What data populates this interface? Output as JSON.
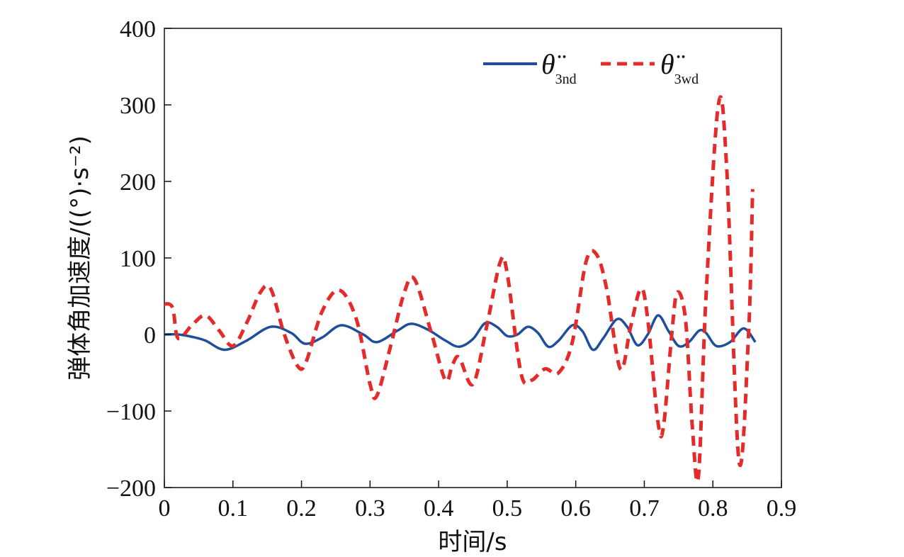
{
  "chart_data": {
    "type": "line",
    "xlabel": "时间/s",
    "ylabel": "弹体角加速度/((°)·s⁻²)",
    "xlim": [
      0,
      0.9
    ],
    "ylim": [
      -200,
      400
    ],
    "xticks": [
      0,
      0.1,
      0.2,
      0.3,
      0.4,
      0.5,
      0.6,
      0.7,
      0.8,
      0.9
    ],
    "xtick_labels": [
      "0",
      "0.1",
      "0.2",
      "0.3",
      "0.4",
      "0.5",
      "0.6",
      "0.7",
      "0.8",
      "0.9"
    ],
    "yticks": [
      -200,
      -100,
      0,
      100,
      200,
      300,
      400
    ],
    "ytick_labels": [
      "−200",
      "−100",
      "0",
      "100",
      "200",
      "300",
      "400"
    ],
    "grid": false,
    "legend": {
      "placement": "top-right",
      "entries": [
        {
          "symbol": "θ̈",
          "subscript": "3nd"
        },
        {
          "symbol": "θ̈",
          "subscript": "3wd"
        }
      ]
    },
    "series": [
      {
        "color": "#1f4e9c",
        "style": "solid",
        "x": [
          0,
          0.02,
          0.04,
          0.06,
          0.088,
          0.12,
          0.155,
          0.185,
          0.205,
          0.23,
          0.258,
          0.29,
          0.31,
          0.34,
          0.36,
          0.385,
          0.41,
          0.43,
          0.45,
          0.468,
          0.485,
          0.5,
          0.515,
          0.53,
          0.545,
          0.56,
          0.575,
          0.595,
          0.61,
          0.625,
          0.64,
          0.66,
          0.675,
          0.69,
          0.705,
          0.72,
          0.735,
          0.75,
          0.765,
          0.78,
          0.79,
          0.805,
          0.825,
          0.845,
          0.862
        ],
        "y": [
          0,
          0,
          -3,
          -8,
          -20,
          -8,
          10,
          2,
          -12,
          -4,
          12,
          0,
          -10,
          5,
          14,
          6,
          -8,
          -16,
          -6,
          15,
          10,
          -2,
          0,
          10,
          2,
          -16,
          -8,
          12,
          4,
          -20,
          -5,
          20,
          10,
          -14,
          0,
          25,
          5,
          -15,
          -10,
          5,
          2,
          -15,
          -10,
          8,
          -10
        ]
      },
      {
        "color": "#e42b2b",
        "style": "dashed",
        "x": [
          0,
          0.012,
          0.02,
          0.04,
          0.06,
          0.08,
          0.1,
          0.12,
          0.14,
          0.155,
          0.175,
          0.195,
          0.207,
          0.23,
          0.255,
          0.28,
          0.3,
          0.31,
          0.33,
          0.35,
          0.365,
          0.39,
          0.41,
          0.42,
          0.43,
          0.45,
          0.47,
          0.49,
          0.5,
          0.52,
          0.535,
          0.555,
          0.575,
          0.595,
          0.615,
          0.63,
          0.645,
          0.665,
          0.68,
          0.695,
          0.705,
          0.72,
          0.728,
          0.74,
          0.748,
          0.76,
          0.77,
          0.779,
          0.79,
          0.808,
          0.82,
          0.838,
          0.852,
          0.858
        ],
        "y": [
          40,
          35,
          -5,
          12,
          25,
          5,
          -15,
          15,
          55,
          60,
          0,
          -42,
          -35,
          30,
          58,
          20,
          -65,
          -80,
          -15,
          55,
          72,
          0,
          -60,
          -40,
          -30,
          -65,
          10,
          95,
          80,
          -50,
          -60,
          -45,
          -50,
          -10,
          95,
          105,
          60,
          -45,
          10,
          60,
          20,
          -115,
          -120,
          0,
          55,
          20,
          -120,
          -185,
          50,
          300,
          220,
          -165,
          0,
          190
        ]
      }
    ]
  }
}
